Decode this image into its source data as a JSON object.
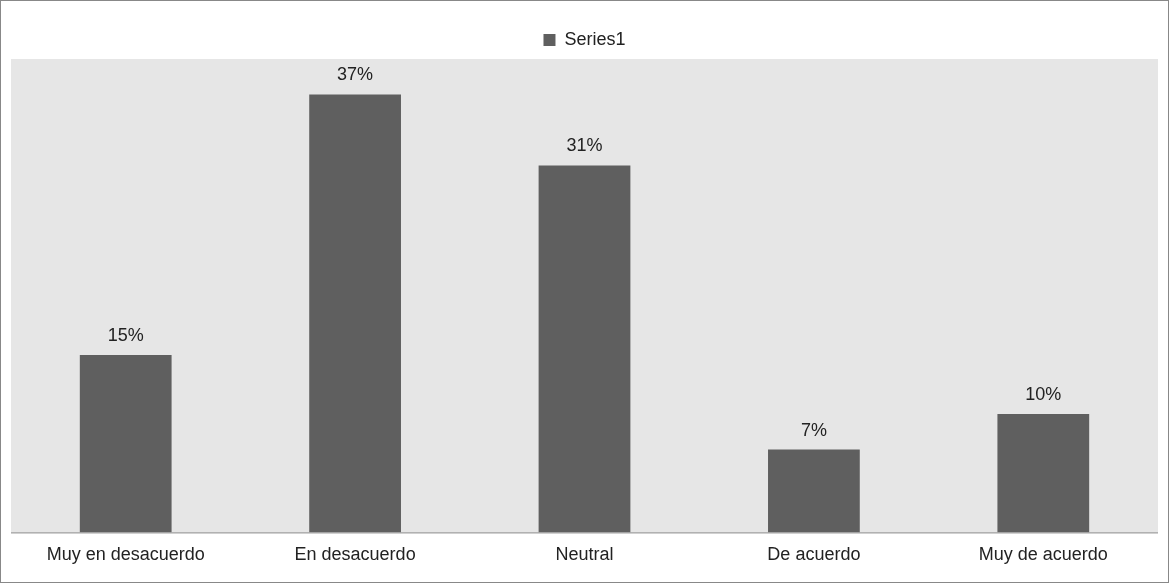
{
  "chart_data": {
    "type": "bar",
    "categories": [
      "Muy en desacuerdo",
      "En desacuerdo",
      "Neutral",
      "De acuerdo",
      "Muy de acuerdo"
    ],
    "series": [
      {
        "name": "Series1",
        "color": "#5f5f5f",
        "values": [
          15,
          37,
          31,
          7,
          10
        ],
        "value_labels": [
          "15%",
          "37%",
          "31%",
          "7%",
          "10%"
        ]
      }
    ],
    "legend": "top",
    "grid": false
  }
}
